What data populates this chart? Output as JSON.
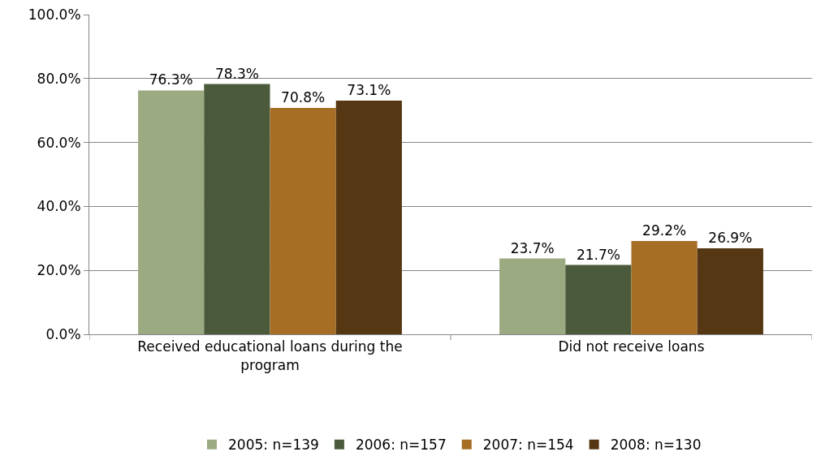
{
  "chart_data": {
    "type": "bar",
    "categories": [
      "Received educational loans during the program",
      "Did not receive loans"
    ],
    "series": [
      {
        "name": "2005: n=139",
        "color": "#9caa82",
        "values": [
          76.3,
          23.7
        ],
        "value_labels": [
          "76.3%",
          "23.7%"
        ]
      },
      {
        "name": "2006: n=157",
        "color": "#4b5a3b",
        "values": [
          78.3,
          21.7
        ],
        "value_labels": [
          "78.3%",
          "21.7%"
        ]
      },
      {
        "name": "2007: n=154",
        "color": "#a66e25",
        "values": [
          70.8,
          29.2
        ],
        "value_labels": [
          "70.8%",
          "29.2%"
        ]
      },
      {
        "name": "2008: n=130",
        "color": "#553714",
        "values": [
          73.1,
          26.9
        ],
        "value_labels": [
          "73.1%",
          "26.9%"
        ]
      }
    ],
    "ylim": [
      0,
      100
    ],
    "yticks": [
      {
        "value": 0,
        "label": "0.0%"
      },
      {
        "value": 20,
        "label": "20.0%"
      },
      {
        "value": 40,
        "label": "40.0%"
      },
      {
        "value": 60,
        "label": "60.0%"
      },
      {
        "value": 80,
        "label": "80.0%"
      },
      {
        "value": 100,
        "label": "100.0%"
      }
    ],
    "grid": "y",
    "legend": "bottom"
  }
}
